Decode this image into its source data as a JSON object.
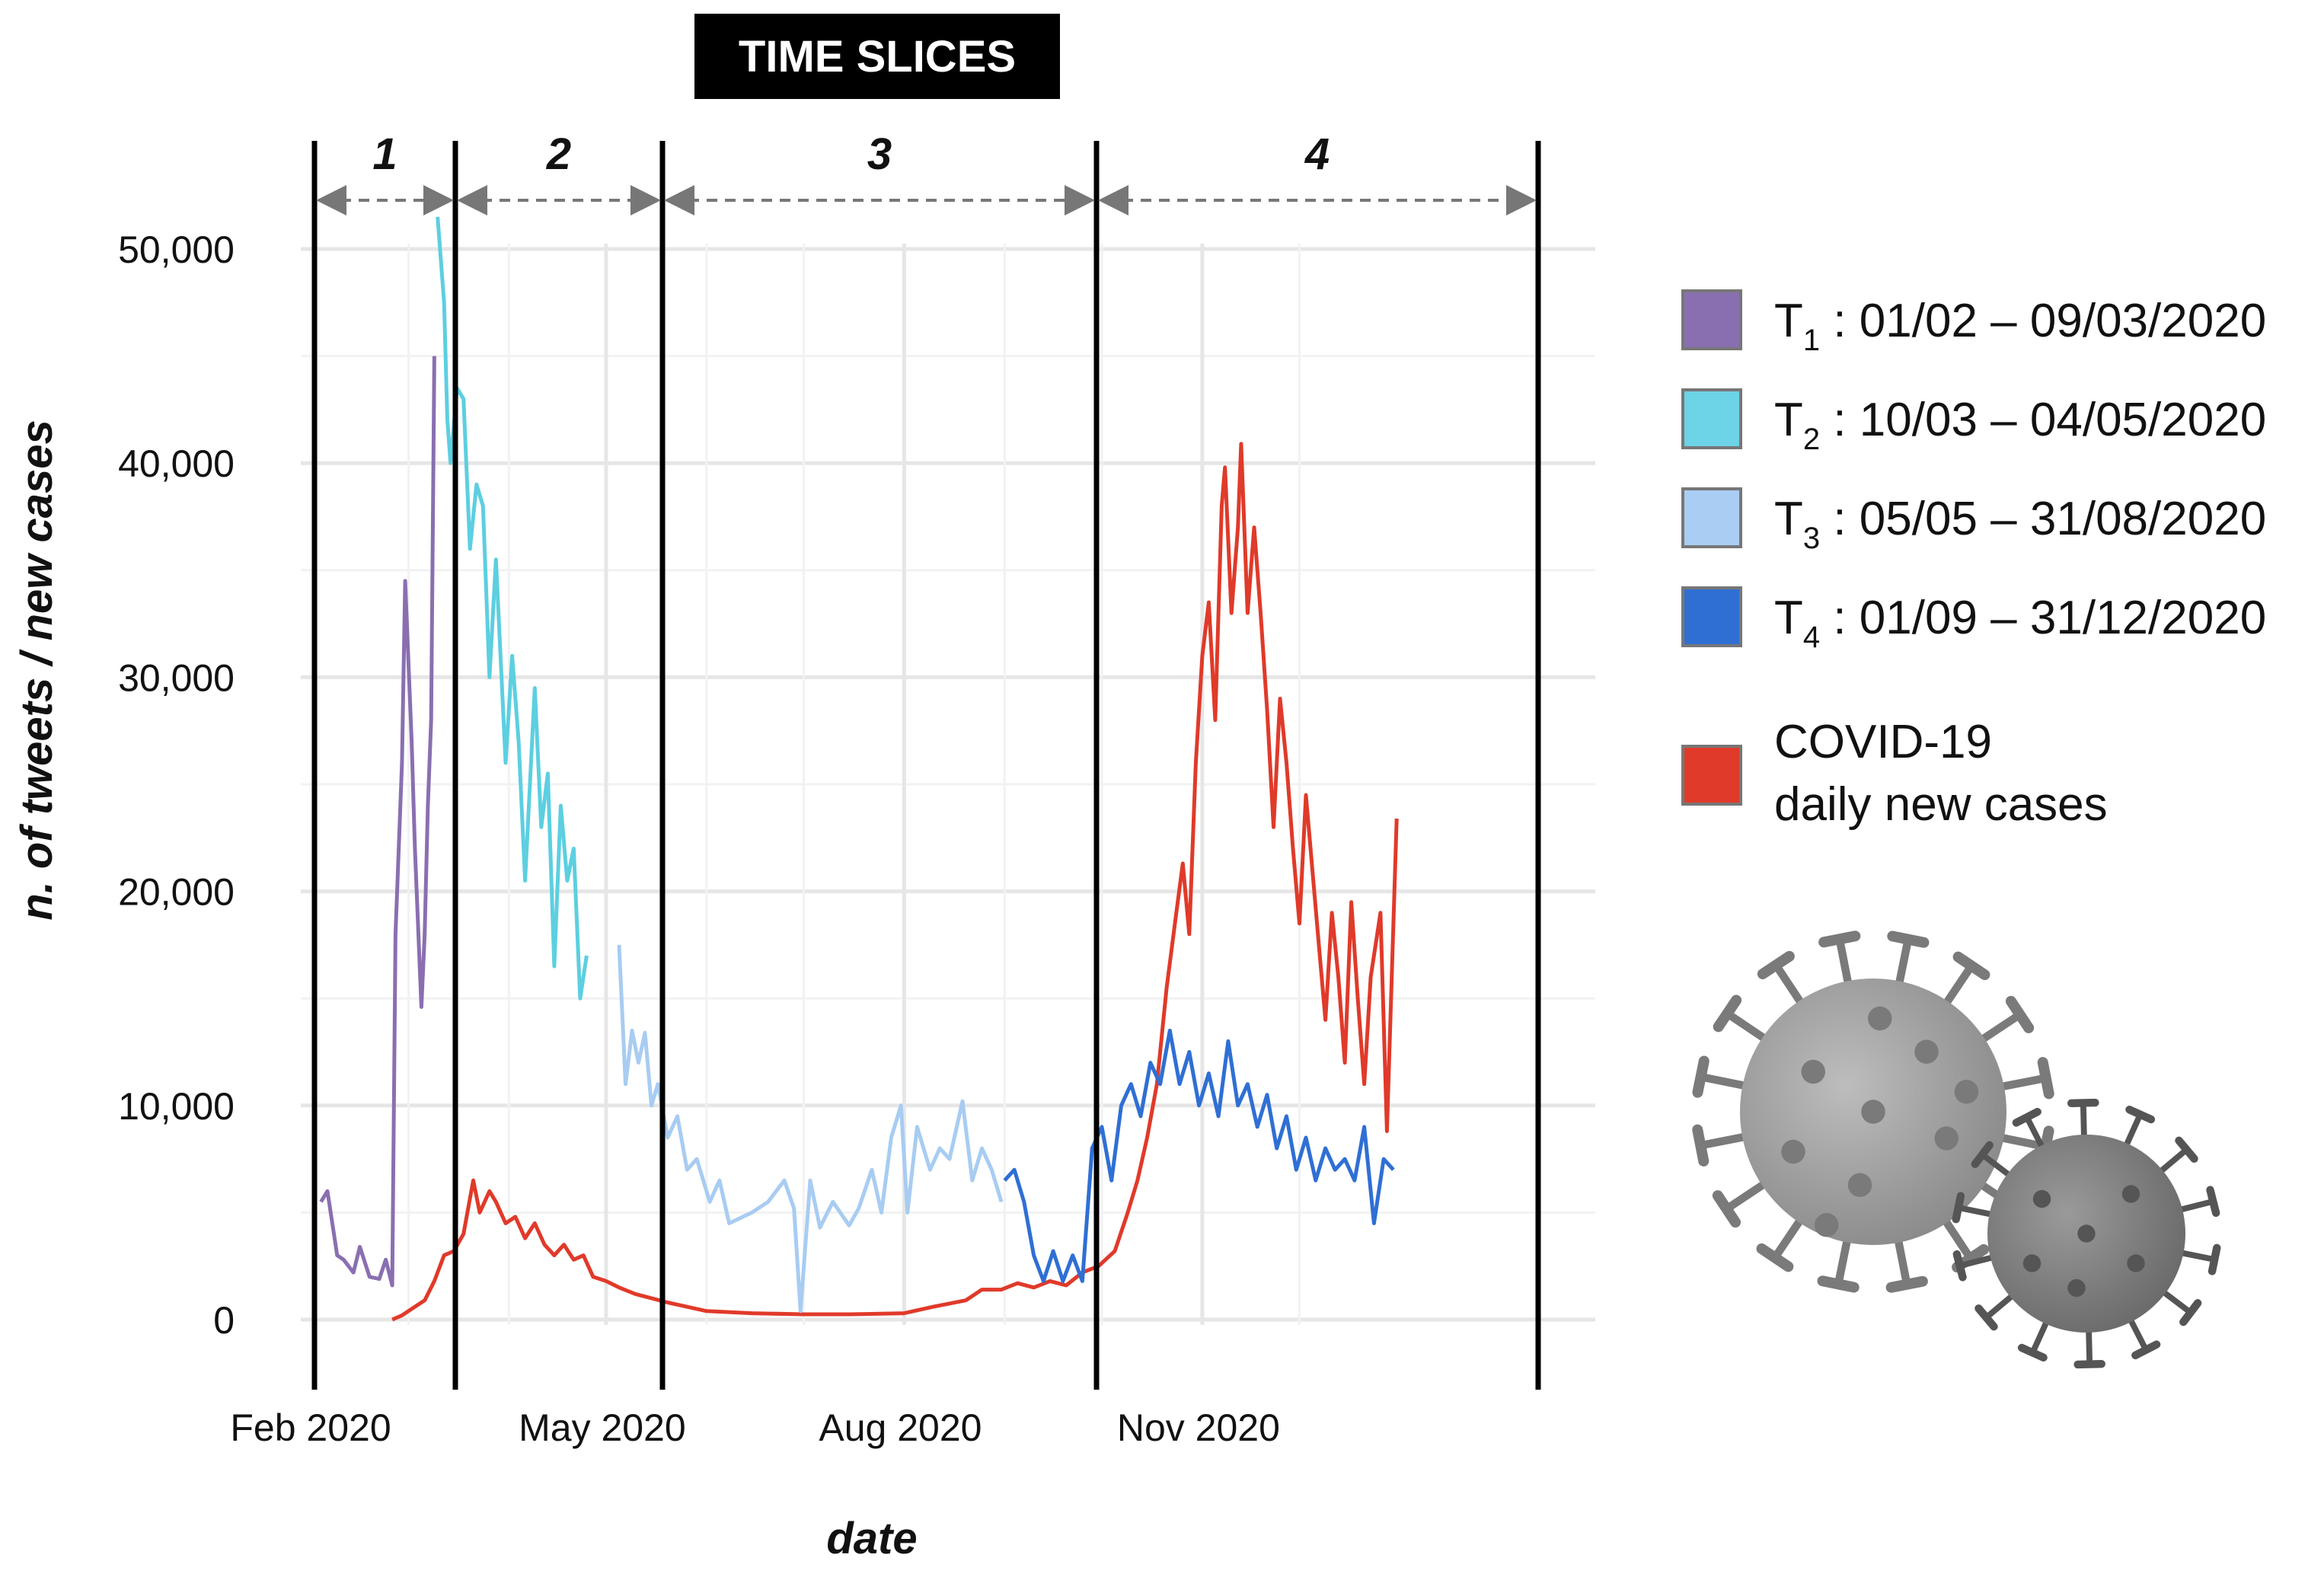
{
  "chart_data": {
    "type": "line",
    "title": "TIME SLICES",
    "xlabel": "date",
    "ylabel": "n. of tweets / new cases",
    "ylim": [
      -5000,
      54000
    ],
    "xlim": [
      "2020-02-01",
      "2021-01-05"
    ],
    "grid": true,
    "legend_position": "right",
    "y_ticks": [
      "0",
      "10,000",
      "20,000",
      "30,000",
      "40,000",
      "50,000"
    ],
    "y_tick_values": [
      0,
      10000,
      20000,
      30000,
      40000,
      50000
    ],
    "x_ticks": [
      {
        "label": "Feb 2020",
        "date": "2020-02-01"
      },
      {
        "label": "May 2020",
        "date": "2020-05-01"
      },
      {
        "label": "Aug 2020",
        "date": "2020-08-01"
      },
      {
        "label": "Nov 2020",
        "date": "2020-11-01"
      }
    ],
    "slices": [
      {
        "label": "1",
        "start": "2020-02-01",
        "end": "2020-03-09"
      },
      {
        "label": "2",
        "start": "2020-03-10",
        "end": "2020-05-04"
      },
      {
        "label": "3",
        "start": "2020-05-05",
        "end": "2020-08-31"
      },
      {
        "label": "4",
        "start": "2020-09-01",
        "end": "2020-12-31"
      }
    ],
    "series": [
      {
        "name": "T1 : 01/02 – 09/03/2020",
        "color": "#8a6fb0",
        "points": [
          [
            "2020-02-03",
            5500
          ],
          [
            "2020-02-05",
            6000
          ],
          [
            "2020-02-08",
            3000
          ],
          [
            "2020-02-10",
            2800
          ],
          [
            "2020-02-13",
            2200
          ],
          [
            "2020-02-15",
            3400
          ],
          [
            "2020-02-18",
            2000
          ],
          [
            "2020-02-21",
            1900
          ],
          [
            "2020-02-23",
            2800
          ],
          [
            "2020-02-25",
            1600
          ],
          [
            "2020-02-26",
            18000
          ],
          [
            "2020-02-28",
            26000
          ],
          [
            "2020-02-29",
            34500
          ],
          [
            "2020-03-02",
            27000
          ],
          [
            "2020-03-03",
            22000
          ],
          [
            "2020-03-05",
            14600
          ],
          [
            "2020-03-06",
            18000
          ],
          [
            "2020-03-07",
            24000
          ],
          [
            "2020-03-08",
            28000
          ],
          [
            "2020-03-09",
            45000
          ]
        ]
      },
      {
        "name": "T2 : 10/03 – 04/05/2020",
        "color": "#5ccfe0",
        "points": [
          [
            "2020-03-10",
            51500
          ],
          [
            "2020-03-12",
            47500
          ],
          [
            "2020-03-13",
            42000
          ],
          [
            "2020-03-14",
            40000
          ],
          [
            "2020-03-16",
            43500
          ],
          [
            "2020-03-18",
            43000
          ],
          [
            "2020-03-20",
            36000
          ],
          [
            "2020-03-22",
            39000
          ],
          [
            "2020-03-24",
            38000
          ],
          [
            "2020-03-26",
            30000
          ],
          [
            "2020-03-28",
            35500
          ],
          [
            "2020-03-31",
            26000
          ],
          [
            "2020-04-02",
            31000
          ],
          [
            "2020-04-04",
            27000
          ],
          [
            "2020-04-06",
            20500
          ],
          [
            "2020-04-09",
            29500
          ],
          [
            "2020-04-11",
            23000
          ],
          [
            "2020-04-13",
            25500
          ],
          [
            "2020-04-15",
            16500
          ],
          [
            "2020-04-17",
            24000
          ],
          [
            "2020-04-19",
            20500
          ],
          [
            "2020-04-21",
            22000
          ],
          [
            "2020-04-23",
            15000
          ],
          [
            "2020-04-25",
            17000
          ]
        ]
      },
      {
        "name": "T3 : 05/05 – 31/08/2020",
        "color": "#a8ccf2",
        "points": [
          [
            "2020-05-05",
            17500
          ],
          [
            "2020-05-07",
            11000
          ],
          [
            "2020-05-09",
            13500
          ],
          [
            "2020-05-11",
            12000
          ],
          [
            "2020-05-13",
            13400
          ],
          [
            "2020-05-15",
            10000
          ],
          [
            "2020-05-17",
            11000
          ],
          [
            "2020-05-20",
            8500
          ],
          [
            "2020-05-23",
            9500
          ],
          [
            "2020-05-26",
            7000
          ],
          [
            "2020-05-29",
            7500
          ],
          [
            "2020-06-02",
            5500
          ],
          [
            "2020-06-05",
            6500
          ],
          [
            "2020-06-08",
            4500
          ],
          [
            "2020-06-15",
            5000
          ],
          [
            "2020-06-20",
            5500
          ],
          [
            "2020-06-25",
            6500
          ],
          [
            "2020-06-28",
            5200
          ],
          [
            "2020-06-30",
            400
          ],
          [
            "2020-07-03",
            6500
          ],
          [
            "2020-07-06",
            4300
          ],
          [
            "2020-07-10",
            5500
          ],
          [
            "2020-07-15",
            4400
          ],
          [
            "2020-07-18",
            5200
          ],
          [
            "2020-07-22",
            7000
          ],
          [
            "2020-07-25",
            5000
          ],
          [
            "2020-07-28",
            8500
          ],
          [
            "2020-07-31",
            10000
          ],
          [
            "2020-08-02",
            5000
          ],
          [
            "2020-08-05",
            9000
          ],
          [
            "2020-08-09",
            7000
          ],
          [
            "2020-08-12",
            8000
          ],
          [
            "2020-08-15",
            7500
          ],
          [
            "2020-08-19",
            10200
          ],
          [
            "2020-08-22",
            6500
          ],
          [
            "2020-08-25",
            8000
          ],
          [
            "2020-08-28",
            7000
          ],
          [
            "2020-08-31",
            5500
          ]
        ]
      },
      {
        "name": "T4 : 01/09 – 31/12/2020",
        "color": "#2f6fd4",
        "points": [
          [
            "2020-09-01",
            6500
          ],
          [
            "2020-09-04",
            7000
          ],
          [
            "2020-09-07",
            5500
          ],
          [
            "2020-09-10",
            3000
          ],
          [
            "2020-09-13",
            1800
          ],
          [
            "2020-09-16",
            3200
          ],
          [
            "2020-09-19",
            1800
          ],
          [
            "2020-09-22",
            3000
          ],
          [
            "2020-09-25",
            1800
          ],
          [
            "2020-09-28",
            8000
          ],
          [
            "2020-10-01",
            9000
          ],
          [
            "2020-10-04",
            6500
          ],
          [
            "2020-10-07",
            10000
          ],
          [
            "2020-10-10",
            11000
          ],
          [
            "2020-10-13",
            9500
          ],
          [
            "2020-10-16",
            12000
          ],
          [
            "2020-10-19",
            11000
          ],
          [
            "2020-10-22",
            13500
          ],
          [
            "2020-10-25",
            11000
          ],
          [
            "2020-10-28",
            12500
          ],
          [
            "2020-10-31",
            10000
          ],
          [
            "2020-11-03",
            11500
          ],
          [
            "2020-11-06",
            9500
          ],
          [
            "2020-11-09",
            13000
          ],
          [
            "2020-11-12",
            10000
          ],
          [
            "2020-11-15",
            11000
          ],
          [
            "2020-11-18",
            9000
          ],
          [
            "2020-11-21",
            10500
          ],
          [
            "2020-11-24",
            8000
          ],
          [
            "2020-11-27",
            9500
          ],
          [
            "2020-11-30",
            7000
          ],
          [
            "2020-12-03",
            8500
          ],
          [
            "2020-12-06",
            6500
          ],
          [
            "2020-12-09",
            8000
          ],
          [
            "2020-12-12",
            7000
          ],
          [
            "2020-12-15",
            7500
          ],
          [
            "2020-12-18",
            6500
          ],
          [
            "2020-12-21",
            9000
          ],
          [
            "2020-12-24",
            4500
          ],
          [
            "2020-12-27",
            7500
          ],
          [
            "2020-12-30",
            7000
          ]
        ]
      },
      {
        "name": "COVID-19 daily new cases",
        "color": "#e03a2a",
        "points": [
          [
            "2020-02-25",
            0
          ],
          [
            "2020-02-28",
            200
          ],
          [
            "2020-03-02",
            500
          ],
          [
            "2020-03-06",
            900
          ],
          [
            "2020-03-09",
            1800
          ],
          [
            "2020-03-12",
            3000
          ],
          [
            "2020-03-15",
            3200
          ],
          [
            "2020-03-18",
            4000
          ],
          [
            "2020-03-21",
            6500
          ],
          [
            "2020-03-23",
            5000
          ],
          [
            "2020-03-26",
            6000
          ],
          [
            "2020-03-28",
            5500
          ],
          [
            "2020-03-31",
            4500
          ],
          [
            "2020-04-03",
            4800
          ],
          [
            "2020-04-06",
            3800
          ],
          [
            "2020-04-09",
            4500
          ],
          [
            "2020-04-12",
            3500
          ],
          [
            "2020-04-15",
            3000
          ],
          [
            "2020-04-18",
            3500
          ],
          [
            "2020-04-21",
            2800
          ],
          [
            "2020-04-24",
            3000
          ],
          [
            "2020-04-27",
            2000
          ],
          [
            "2020-05-01",
            1800
          ],
          [
            "2020-05-05",
            1500
          ],
          [
            "2020-05-10",
            1200
          ],
          [
            "2020-05-20",
            800
          ],
          [
            "2020-06-01",
            400
          ],
          [
            "2020-06-15",
            300
          ],
          [
            "2020-07-01",
            250
          ],
          [
            "2020-07-15",
            250
          ],
          [
            "2020-08-01",
            300
          ],
          [
            "2020-08-10",
            600
          ],
          [
            "2020-08-20",
            900
          ],
          [
            "2020-08-25",
            1400
          ],
          [
            "2020-08-31",
            1400
          ],
          [
            "2020-09-05",
            1700
          ],
          [
            "2020-09-10",
            1500
          ],
          [
            "2020-09-15",
            1800
          ],
          [
            "2020-09-20",
            1600
          ],
          [
            "2020-09-25",
            2200
          ],
          [
            "2020-09-30",
            2500
          ],
          [
            "2020-10-05",
            3200
          ],
          [
            "2020-10-09",
            5000
          ],
          [
            "2020-10-12",
            6500
          ],
          [
            "2020-10-15",
            8500
          ],
          [
            "2020-10-18",
            11000
          ],
          [
            "2020-10-21",
            15500
          ],
          [
            "2020-10-24",
            19000
          ],
          [
            "2020-10-26",
            21300
          ],
          [
            "2020-10-28",
            18000
          ],
          [
            "2020-10-30",
            26000
          ],
          [
            "2020-11-01",
            31000
          ],
          [
            "2020-11-03",
            33500
          ],
          [
            "2020-11-05",
            28000
          ],
          [
            "2020-11-07",
            38000
          ],
          [
            "2020-11-08",
            39800
          ],
          [
            "2020-11-10",
            33000
          ],
          [
            "2020-11-12",
            37000
          ],
          [
            "2020-11-13",
            40900
          ],
          [
            "2020-11-15",
            33000
          ],
          [
            "2020-11-17",
            37000
          ],
          [
            "2020-11-19",
            33000
          ],
          [
            "2020-11-21",
            28500
          ],
          [
            "2020-11-23",
            23000
          ],
          [
            "2020-11-25",
            29000
          ],
          [
            "2020-11-27",
            26000
          ],
          [
            "2020-11-29",
            22000
          ],
          [
            "2020-12-01",
            18500
          ],
          [
            "2020-12-03",
            24500
          ],
          [
            "2020-12-05",
            21000
          ],
          [
            "2020-12-07",
            17500
          ],
          [
            "2020-12-09",
            14000
          ],
          [
            "2020-12-11",
            19000
          ],
          [
            "2020-12-13",
            16000
          ],
          [
            "2020-12-15",
            12000
          ],
          [
            "2020-12-17",
            19500
          ],
          [
            "2020-12-19",
            15000
          ],
          [
            "2020-12-21",
            11000
          ],
          [
            "2020-12-23",
            16000
          ],
          [
            "2020-12-26",
            19000
          ],
          [
            "2020-12-28",
            8800
          ],
          [
            "2020-12-31",
            23400
          ]
        ]
      }
    ]
  },
  "legend": [
    {
      "base": "T",
      "sub": "1",
      "text": " : 01/02 – 09/03/2020",
      "color": "#8a6fb0"
    },
    {
      "base": "T",
      "sub": "2",
      "text": " : 10/03 – 04/05/2020",
      "color": "#6dd3e6"
    },
    {
      "base": "T",
      "sub": "3",
      "text": " : 05/05 – 31/08/2020",
      "color": "#aacdf4"
    },
    {
      "base": "T",
      "sub": "4",
      "text": " : 01/09 – 31/12/2020",
      "color": "#2f6fd4"
    }
  ],
  "covid_legend": {
    "line1": "COVID-19",
    "line2": "daily new cases",
    "color": "#e03a2a"
  }
}
